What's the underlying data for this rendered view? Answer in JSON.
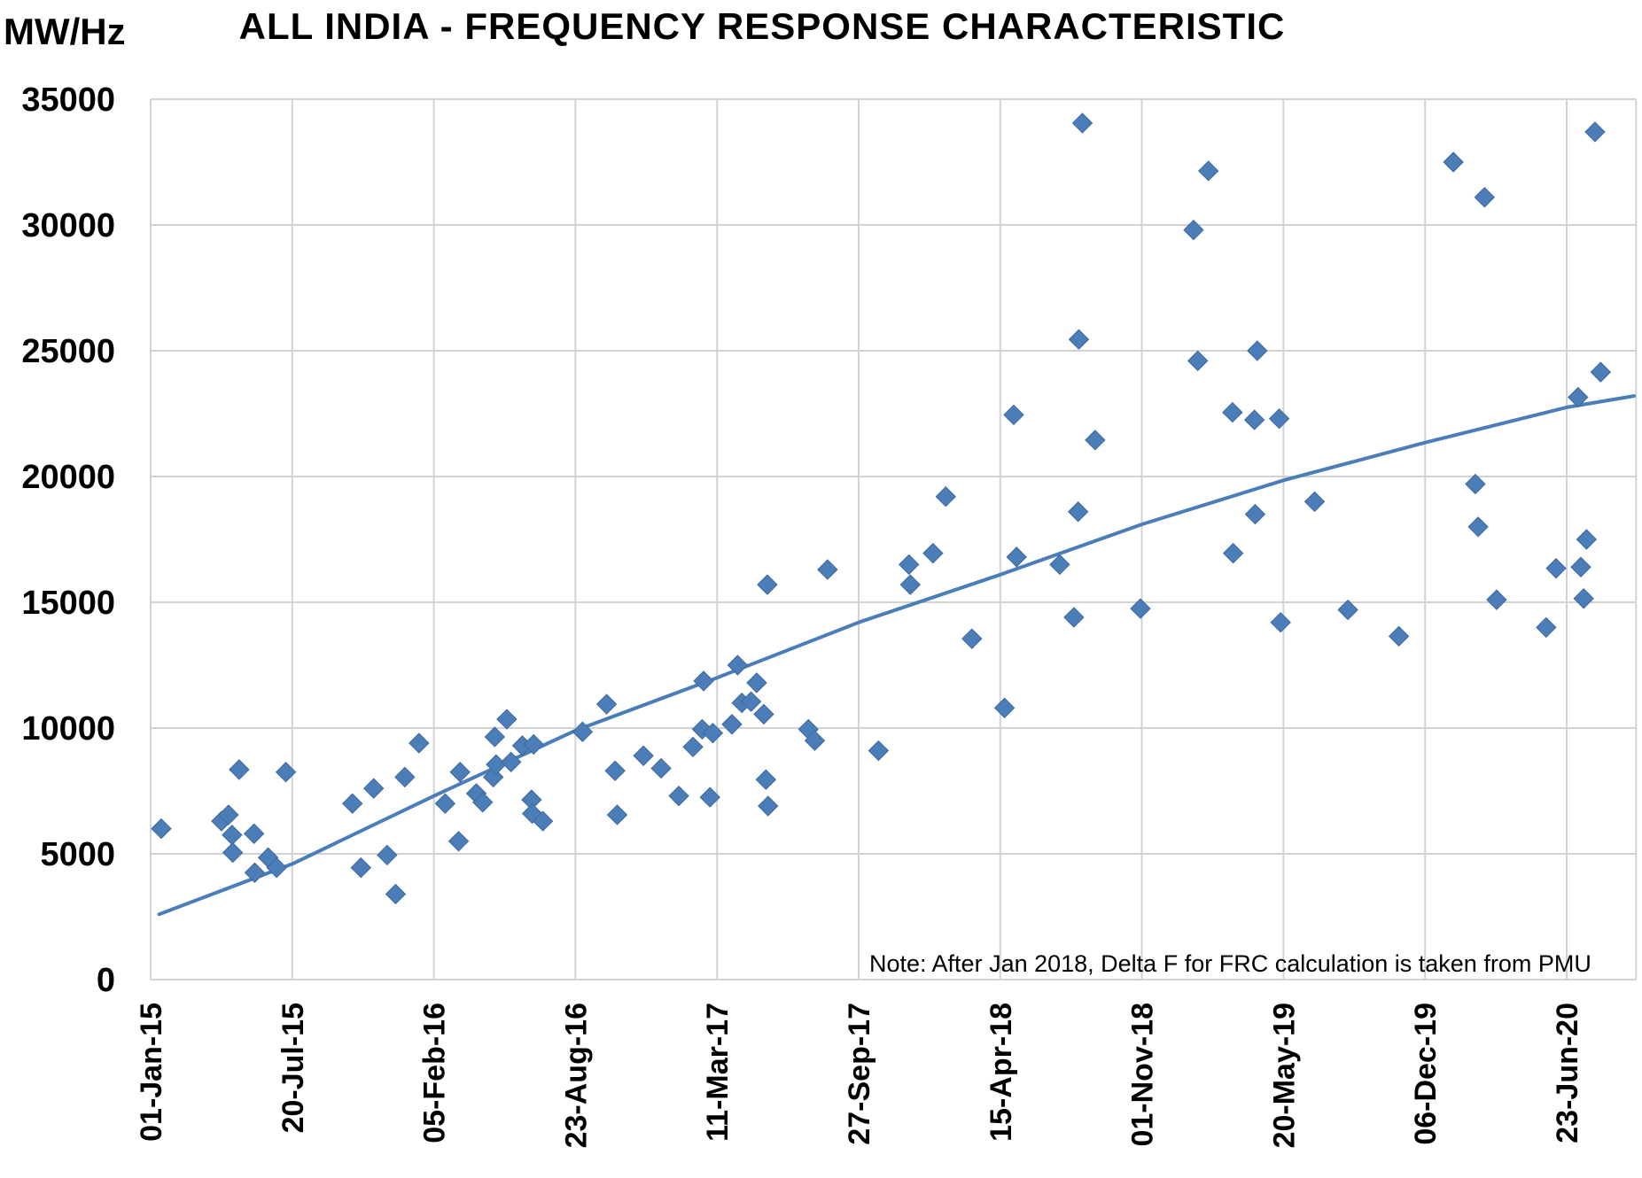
{
  "header": {
    "y_axis_unit": "MW/Hz",
    "title": "ALL INDIA - FREQUENCY RESPONSE CHARACTERISTIC"
  },
  "note": "Note: After Jan 2018, Delta F for FRC calculation is taken from PMU",
  "colors": {
    "accent": "#4b7db8",
    "marker_stroke": "#3e699c",
    "grid": "#d2d2d2",
    "text": "#000000"
  },
  "chart_data": {
    "type": "scatter",
    "title": "ALL INDIA - FREQUENCY RESPONSE CHARACTERISTIC",
    "ylabel": "MW/Hz",
    "ylim": [
      0,
      35000
    ],
    "y_tick_step": 5000,
    "y_tick_labels": [
      "0",
      "5000",
      "10000",
      "15000",
      "20000",
      "25000",
      "30000",
      "35000"
    ],
    "x_unit": "days since 01-Jan-2015",
    "x_domain": [
      0,
      2098
    ],
    "x_ticks": [
      {
        "day": 0,
        "label": "01-Jan-15"
      },
      {
        "day": 200,
        "label": "20-Jul-15"
      },
      {
        "day": 400,
        "label": "05-Feb-16"
      },
      {
        "day": 600,
        "label": "23-Aug-16"
      },
      {
        "day": 800,
        "label": "11-Mar-17"
      },
      {
        "day": 1000,
        "label": "27-Sep-17"
      },
      {
        "day": 1200,
        "label": "15-Apr-18"
      },
      {
        "day": 1400,
        "label": "01-Nov-18"
      },
      {
        "day": 1600,
        "label": "20-May-19"
      },
      {
        "day": 1800,
        "label": "06-Dec-19"
      },
      {
        "day": 2000,
        "label": "23-Jun-20"
      }
    ],
    "grid": true,
    "legend": "none",
    "annotation": "Note: After Jan 2018, Delta F for FRC calculation is taken from PMU",
    "series": [
      {
        "name": "All India Frequency Response Characteristic (MW/Hz)",
        "marker": "diamond",
        "points": [
          [
            15,
            6000
          ],
          [
            100,
            6300
          ],
          [
            110,
            6550
          ],
          [
            115,
            5750
          ],
          [
            116,
            5050
          ],
          [
            125,
            8350
          ],
          [
            146,
            5800
          ],
          [
            147,
            4250
          ],
          [
            166,
            4850
          ],
          [
            178,
            4450
          ],
          [
            191,
            8250
          ],
          [
            285,
            7000
          ],
          [
            297,
            4450
          ],
          [
            315,
            7600
          ],
          [
            334,
            4950
          ],
          [
            346,
            3400
          ],
          [
            359,
            8050
          ],
          [
            379,
            9400
          ],
          [
            416,
            7000
          ],
          [
            435,
            5500
          ],
          [
            437,
            8250
          ],
          [
            460,
            7400
          ],
          [
            469,
            7050
          ],
          [
            484,
            8050
          ],
          [
            486,
            9650
          ],
          [
            488,
            8550
          ],
          [
            503,
            10350
          ],
          [
            509,
            8650
          ],
          [
            525,
            9300
          ],
          [
            538,
            7150
          ],
          [
            539,
            6600
          ],
          [
            541,
            9350
          ],
          [
            554,
            6300
          ],
          [
            610,
            9850
          ],
          [
            644,
            10950
          ],
          [
            656,
            8300
          ],
          [
            659,
            6550
          ],
          [
            696,
            8900
          ],
          [
            721,
            8400
          ],
          [
            746,
            7300
          ],
          [
            766,
            9250
          ],
          [
            779,
            9950
          ],
          [
            781,
            11870
          ],
          [
            790,
            7250
          ],
          [
            794,
            9800
          ],
          [
            821,
            10150
          ],
          [
            829,
            12500
          ],
          [
            835,
            11000
          ],
          [
            848,
            11050
          ],
          [
            856,
            11800
          ],
          [
            866,
            10550
          ],
          [
            869,
            7950
          ],
          [
            871,
            15700
          ],
          [
            872,
            6900
          ],
          [
            929,
            9950
          ],
          [
            938,
            9500
          ],
          [
            956,
            16300
          ],
          [
            1028,
            9100
          ],
          [
            1071,
            16500
          ],
          [
            1073,
            15700
          ],
          [
            1105,
            16950
          ],
          [
            1123,
            19200
          ],
          [
            1160,
            13550
          ],
          [
            1206,
            10800
          ],
          [
            1219,
            22450
          ],
          [
            1223,
            16800
          ],
          [
            1284,
            16500
          ],
          [
            1304,
            14400
          ],
          [
            1310,
            18600
          ],
          [
            1311,
            25450
          ],
          [
            1316,
            34050
          ],
          [
            1334,
            21450
          ],
          [
            1398,
            14750
          ],
          [
            1473,
            29800
          ],
          [
            1479,
            24600
          ],
          [
            1494,
            32150
          ],
          [
            1528,
            22550
          ],
          [
            1529,
            16950
          ],
          [
            1559,
            22250
          ],
          [
            1560,
            18500
          ],
          [
            1563,
            25000
          ],
          [
            1594,
            22300
          ],
          [
            1596,
            14200
          ],
          [
            1644,
            19000
          ],
          [
            1691,
            14700
          ],
          [
            1763,
            13650
          ],
          [
            1840,
            32500
          ],
          [
            1871,
            19700
          ],
          [
            1875,
            18000
          ],
          [
            1884,
            31100
          ],
          [
            1901,
            15100
          ],
          [
            1971,
            14000
          ],
          [
            1985,
            16350
          ],
          [
            2016,
            23150
          ],
          [
            2020,
            16400
          ],
          [
            2024,
            15150
          ],
          [
            2028,
            17500
          ],
          [
            2040,
            33700
          ],
          [
            2048,
            24150
          ]
        ]
      }
    ],
    "trendline": {
      "name": "trend",
      "points": [
        [
          12,
          2600
        ],
        [
          200,
          4600
        ],
        [
          400,
          7300
        ],
        [
          600,
          9900
        ],
        [
          800,
          12000
        ],
        [
          1000,
          14200
        ],
        [
          1200,
          16100
        ],
        [
          1400,
          18100
        ],
        [
          1600,
          19850
        ],
        [
          1800,
          21350
        ],
        [
          2000,
          22750
        ],
        [
          2095,
          23200
        ]
      ]
    }
  }
}
